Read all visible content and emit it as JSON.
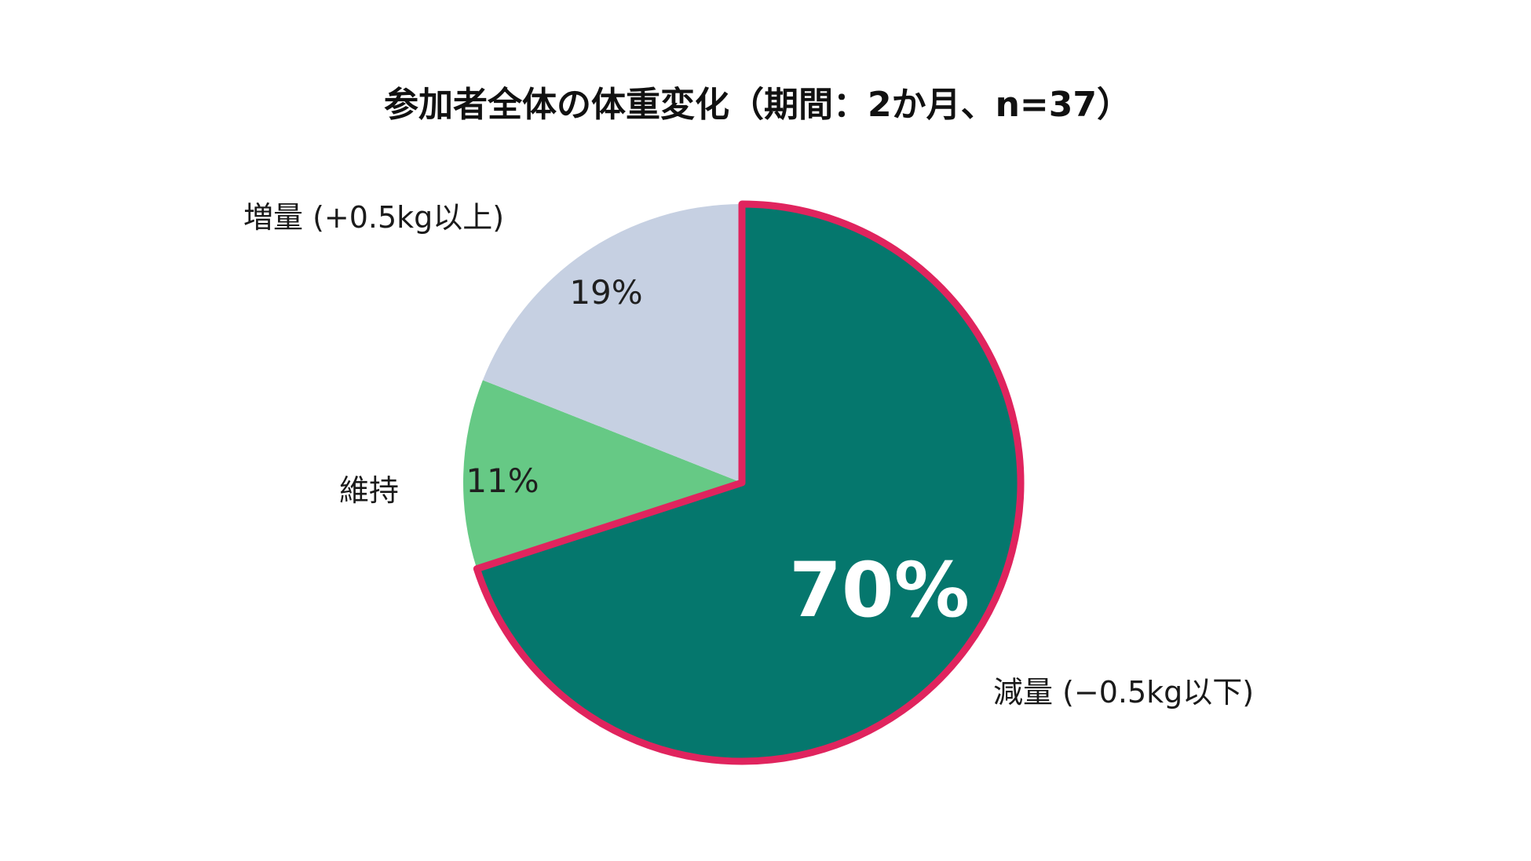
{
  "chart_data": {
    "type": "pie",
    "title": "参加者全体の体重変化（期間：2か月、n=37）",
    "slices": [
      {
        "label": "減量 (−0.5kg以下)",
        "value": 70,
        "value_label": "70%",
        "color": "#05776D",
        "highlight_color": "#E0245E"
      },
      {
        "label": "維持",
        "value": 11,
        "value_label": "11%",
        "color": "#66C985"
      },
      {
        "label": "増量 (+0.5kg以上)",
        "value": 19,
        "value_label": "19%",
        "color": "#C6D0E2"
      }
    ],
    "start_angle_deg": 0,
    "direction": "clockwise",
    "legend": "none"
  }
}
